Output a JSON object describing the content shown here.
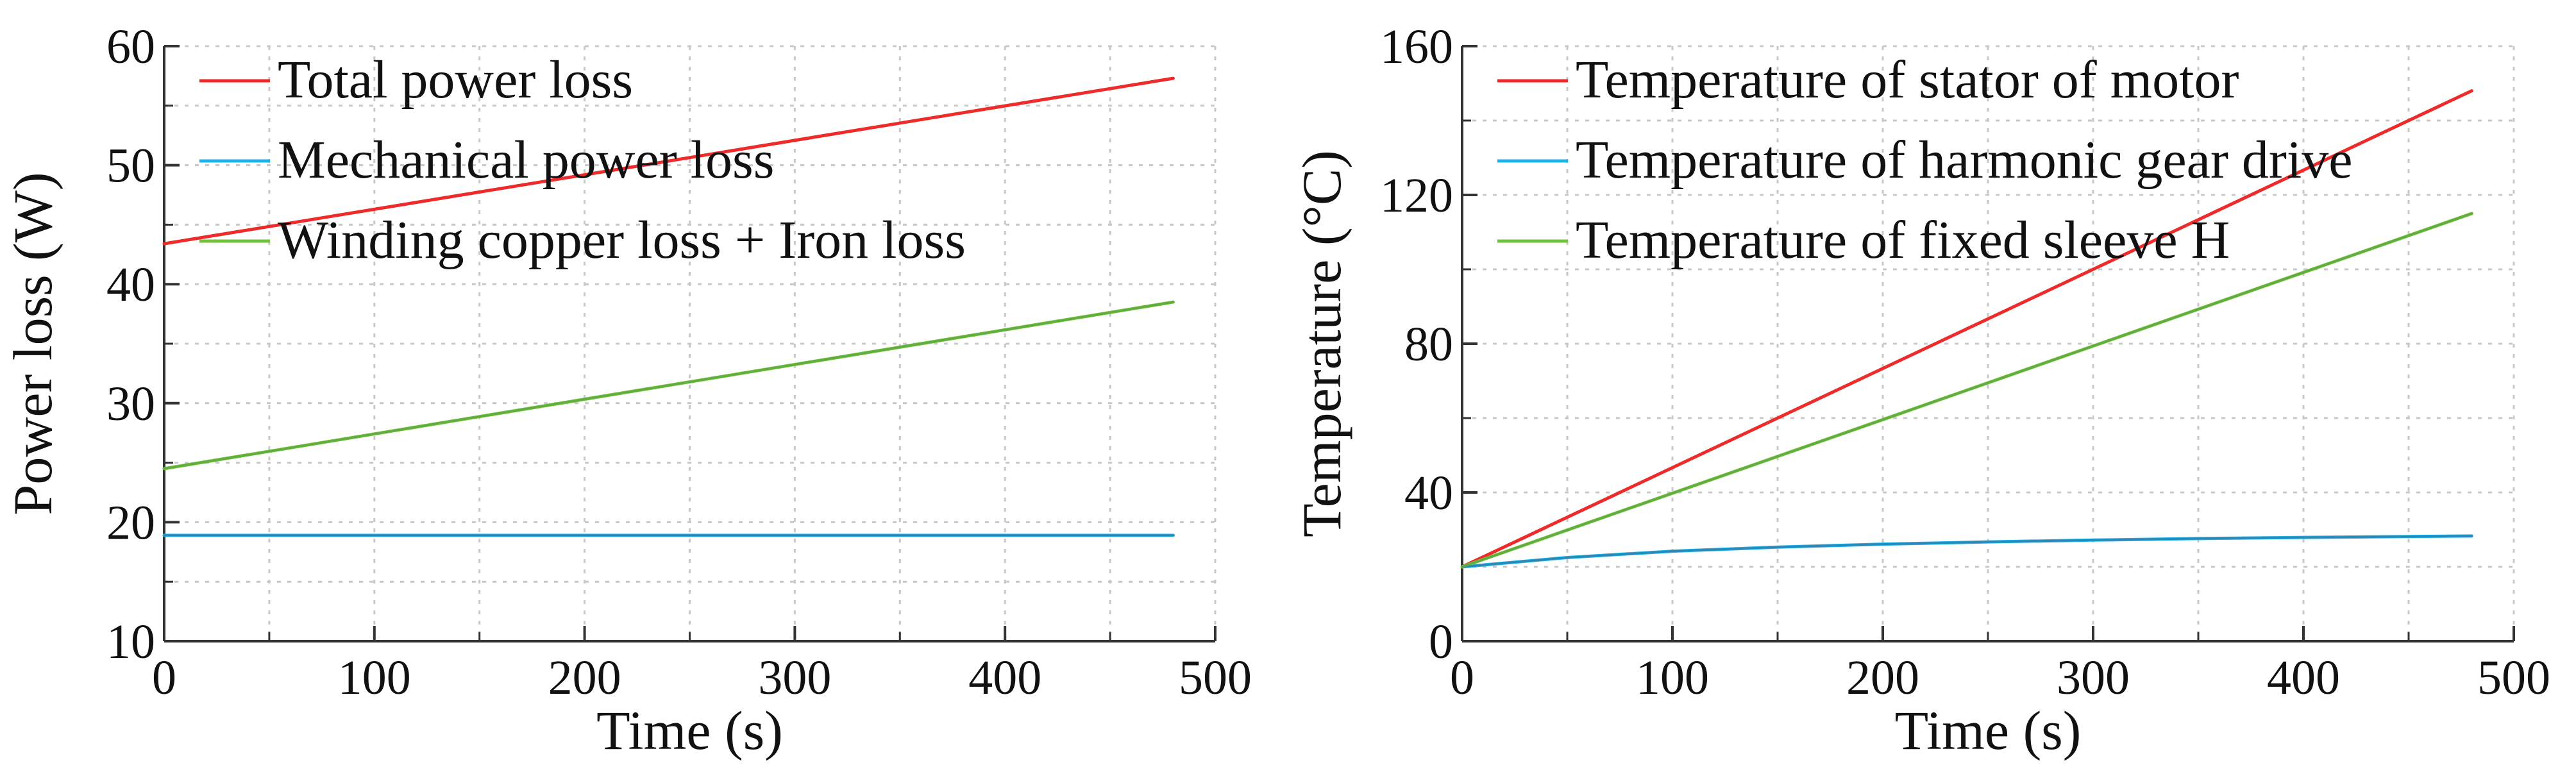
{
  "chart_data": [
    {
      "type": "line",
      "title": "",
      "xlabel": "Time (s)",
      "ylabel": "Power loss (W)",
      "xlim": [
        0,
        500
      ],
      "ylim": [
        10,
        60
      ],
      "xticks": [
        0,
        100,
        200,
        300,
        400,
        500
      ],
      "yticks": [
        10,
        20,
        30,
        40,
        50,
        60
      ],
      "x_minor_step": 50,
      "y_minor_step": 5,
      "grid": true,
      "legend_position": "top-left",
      "series": [
        {
          "name": "Total power loss",
          "color": "#ee2b2b",
          "x": [
            0,
            480
          ],
          "y": [
            43.4,
            57.3
          ]
        },
        {
          "name": "Mechanical power loss",
          "color": "#1eb3e8",
          "x": [
            0,
            480
          ],
          "y": [
            18.9,
            18.9
          ]
        },
        {
          "name": "Winding copper loss + Iron loss",
          "color": "#72c13a",
          "x": [
            0,
            480
          ],
          "y": [
            24.5,
            38.5
          ]
        }
      ],
      "overlay_lines": [
        {
          "color": "#2e7fae",
          "x": [
            0,
            480
          ],
          "y": [
            18.9,
            18.9
          ]
        },
        {
          "color": "#5da843",
          "x": [
            0,
            480
          ],
          "y": [
            24.5,
            38.5
          ]
        }
      ]
    },
    {
      "type": "line",
      "title": "",
      "xlabel": "Time (s)",
      "ylabel": "Temperature (°C)",
      "xlim": [
        0,
        500
      ],
      "ylim": [
        0,
        160
      ],
      "xticks": [
        0,
        100,
        200,
        300,
        400,
        500
      ],
      "yticks": [
        0,
        40,
        80,
        120,
        160
      ],
      "x_minor_step": 50,
      "y_minor_step": 20,
      "grid": true,
      "legend_position": "top-left",
      "series": [
        {
          "name": "Temperature of stator of motor",
          "color": "#ee2b2b",
          "x": [
            0,
            480
          ],
          "y": [
            20,
            148
          ]
        },
        {
          "name": "Temperature of harmonic gear drive",
          "color": "#1eb3e8",
          "x": [
            0,
            50,
            100,
            150,
            200,
            250,
            300,
            350,
            400,
            480
          ],
          "y": [
            20,
            22.5,
            24.2,
            25.3,
            26.1,
            26.7,
            27.2,
            27.6,
            27.9,
            28.3
          ]
        },
        {
          "name": "Temperature of fixed sleeve H",
          "color": "#72c13a",
          "x": [
            0,
            480
          ],
          "y": [
            20,
            115
          ]
        }
      ],
      "overlay_lines": [
        {
          "color": "#2e7fae",
          "x": [
            0,
            50,
            100,
            150,
            200,
            250,
            300,
            350,
            400,
            480
          ],
          "y": [
            20,
            22.5,
            24.2,
            25.3,
            26.1,
            26.7,
            27.2,
            27.6,
            27.9,
            28.3
          ]
        },
        {
          "color": "#5da843",
          "x": [
            0,
            480
          ],
          "y": [
            20,
            115
          ]
        }
      ]
    }
  ]
}
